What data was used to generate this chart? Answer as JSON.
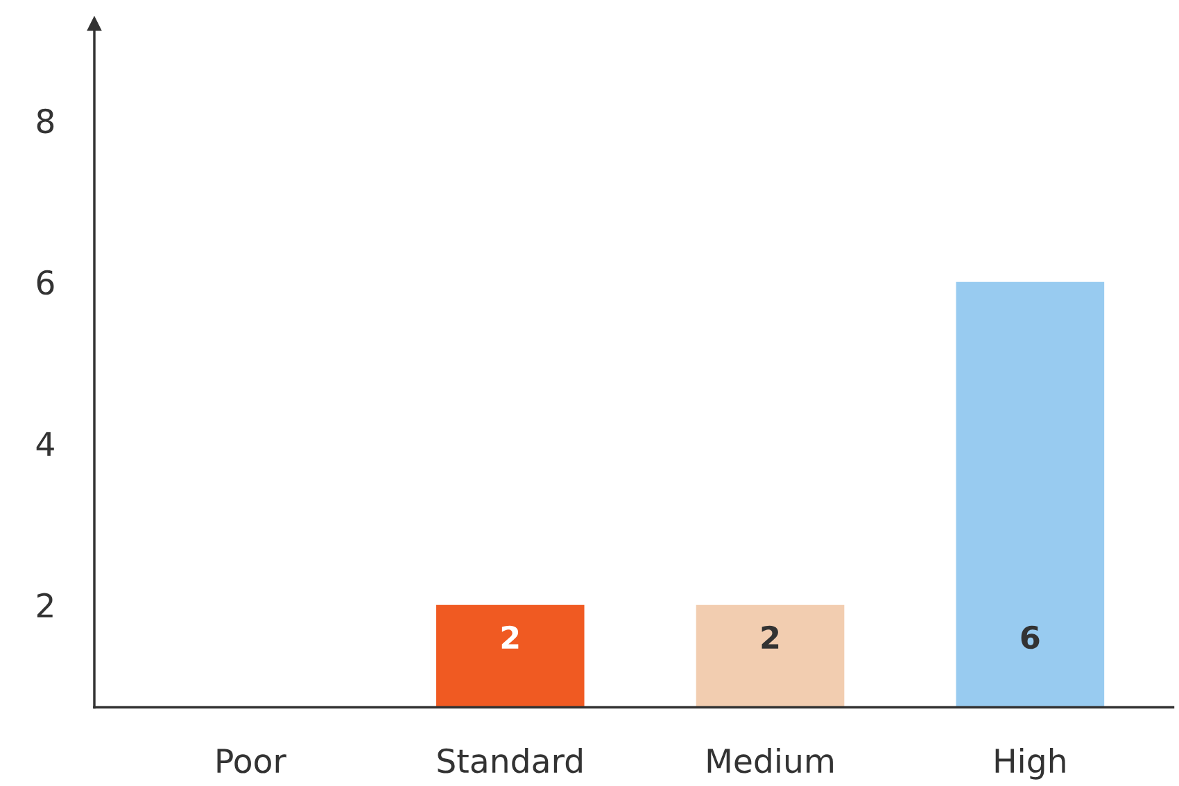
{
  "chart_data": {
    "type": "bar",
    "categories": [
      "Poor",
      "Standard",
      "Medium",
      "High"
    ],
    "values": [
      null,
      2,
      2,
      6
    ],
    "value_labels": [
      null,
      "2",
      "2",
      "6"
    ],
    "colors": [
      "#cccccc",
      "#f05a22",
      "#f2cdb0",
      "#98cbf0"
    ],
    "ylim": [
      0.73,
      9.2
    ],
    "yticks": [
      2,
      4,
      6,
      8
    ],
    "grid": false
  }
}
